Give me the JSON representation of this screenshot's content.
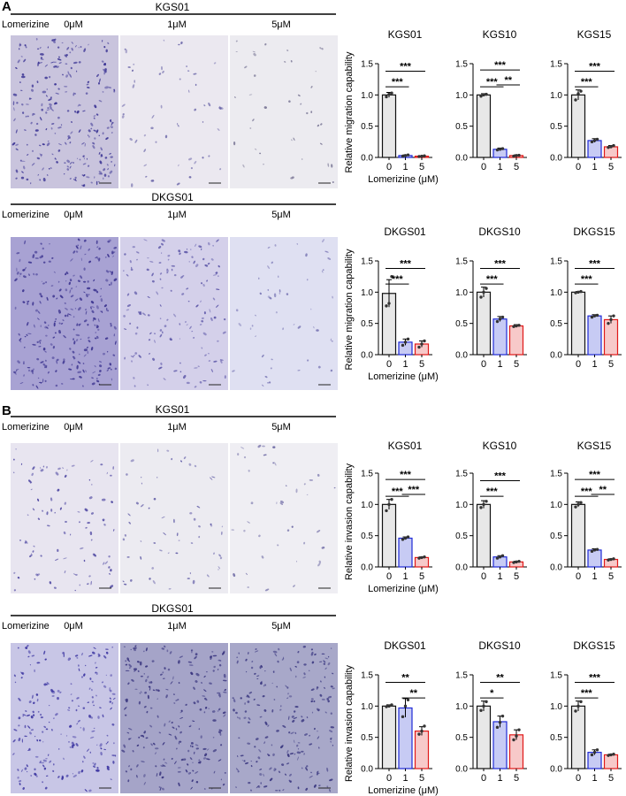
{
  "panels": [
    {
      "letter": "A",
      "rows": [
        {
          "cell_line": "KGS01",
          "treatment_label": "Lomerizine",
          "doses": [
            "0μM",
            "1μM",
            "5μM"
          ],
          "micrographs": [
            {
              "tint": "#c9c4dd",
              "density": 260,
              "cell": "#3b3494"
            },
            {
              "tint": "#ebe8f0",
              "density": 55,
              "cell": "#6a65a8"
            },
            {
              "tint": "#ecebf0",
              "density": 40,
              "cell": "#7d7a98"
            }
          ]
        },
        {
          "cell_line": "DKGS01",
          "treatment_label": "Lomerizine",
          "doses": [
            "0μM",
            "1μM",
            "5μM"
          ],
          "micrographs": [
            {
              "tint": "#a8a2d3",
              "density": 280,
              "cell": "#3d3590"
            },
            {
              "tint": "#d4d0ea",
              "density": 150,
              "cell": "#5d57a8"
            },
            {
              "tint": "#dfe0f2",
              "density": 50,
              "cell": "#7c79b6"
            }
          ]
        }
      ]
    },
    {
      "letter": "B",
      "rows": [
        {
          "cell_line": "KGS01",
          "treatment_label": "Lomerizine",
          "doses": [
            "0μM",
            "1μM",
            "5μM"
          ],
          "micrographs": [
            {
              "tint": "#e8e5f0",
              "density": 95,
              "cell": "#4b44a0"
            },
            {
              "tint": "#ecebf1",
              "density": 60,
              "cell": "#5d58a4"
            },
            {
              "tint": "#efeef3",
              "density": 40,
              "cell": "#6f6ba5"
            }
          ]
        },
        {
          "cell_line": "DKGS01",
          "treatment_label": "Lomerizine",
          "doses": [
            "0μM",
            "1μM",
            "5μM"
          ],
          "micrographs": [
            {
              "tint": "#c8c6e6",
              "density": 210,
              "cell": "#3a33a0"
            },
            {
              "tint": "#a5a4c8",
              "density": 230,
              "cell": "#38347e"
            },
            {
              "tint": "#a8a8c9",
              "density": 210,
              "cell": "#3a3780"
            }
          ]
        }
      ]
    }
  ],
  "chart_data": [
    {
      "type": "bar",
      "title": "KGS01",
      "xlabel": "Lomerizine (μM)",
      "ylabel": "Relative migration capability",
      "categories": [
        "0",
        "1",
        "5"
      ],
      "values": [
        1.0,
        0.03,
        0.02
      ],
      "errors": [
        0.04,
        0.01,
        0.005
      ],
      "points": [
        [
          0.97,
          1.01,
          1.03
        ],
        [
          0.02,
          0.03,
          0.04
        ],
        [
          0.015,
          0.02,
          0.025
        ]
      ],
      "ylim": [
        0,
        1.5
      ],
      "yticks": [
        "0.0",
        "0.5",
        "1.0",
        "1.5"
      ],
      "significance": [
        {
          "from": 0,
          "to": 1,
          "label": "***"
        },
        {
          "from": 0,
          "to": 2,
          "label": "***"
        }
      ]
    },
    {
      "type": "bar",
      "title": "KGS10",
      "xlabel": "",
      "ylabel": "",
      "categories": [
        "0",
        "1",
        "5"
      ],
      "values": [
        1.0,
        0.13,
        0.03
      ],
      "errors": [
        0.02,
        0.02,
        0.01
      ],
      "points": [
        [
          0.98,
          1.0,
          1.01
        ],
        [
          0.12,
          0.13,
          0.14
        ],
        [
          0.02,
          0.03,
          0.035
        ]
      ],
      "ylim": [
        0,
        1.5
      ],
      "yticks": [
        "0.0",
        "0.5",
        "1.0",
        "1.5"
      ],
      "significance": [
        {
          "from": 0,
          "to": 1,
          "label": "***"
        },
        {
          "from": 1,
          "to": 2,
          "label": "**"
        },
        {
          "from": 0,
          "to": 2,
          "label": "***"
        }
      ]
    },
    {
      "type": "bar",
      "title": "KGS15",
      "xlabel": "",
      "ylabel": "",
      "categories": [
        "0",
        "1",
        "5"
      ],
      "values": [
        1.0,
        0.27,
        0.17
      ],
      "errors": [
        0.08,
        0.03,
        0.02
      ],
      "points": [
        [
          0.92,
          1.02,
          1.06
        ],
        [
          0.25,
          0.27,
          0.29
        ],
        [
          0.16,
          0.17,
          0.19
        ]
      ],
      "ylim": [
        0,
        1.5
      ],
      "yticks": [
        "0.0",
        "0.5",
        "1.0",
        "1.5"
      ],
      "significance": [
        {
          "from": 0,
          "to": 1,
          "label": "***"
        },
        {
          "from": 0,
          "to": 2,
          "label": "***"
        }
      ]
    },
    {
      "type": "bar",
      "title": "DKGS01",
      "xlabel": "Lomerizine (μM)",
      "ylabel": "Relative migration capability",
      "categories": [
        "0",
        "1",
        "5"
      ],
      "values": [
        0.98,
        0.2,
        0.17
      ],
      "errors": [
        0.22,
        0.05,
        0.05
      ],
      "points": [
        [
          0.78,
          0.82,
          1.25
        ],
        [
          0.15,
          0.2,
          0.25
        ],
        [
          0.12,
          0.17,
          0.22
        ]
      ],
      "ylim": [
        0,
        1.5
      ],
      "yticks": [
        "0.0",
        "0.5",
        "1.0",
        "1.5"
      ],
      "significance": [
        {
          "from": 0,
          "to": 1,
          "label": "***"
        },
        {
          "from": 0,
          "to": 2,
          "label": "***"
        }
      ]
    },
    {
      "type": "bar",
      "title": "DKGS10",
      "xlabel": "",
      "ylabel": "",
      "categories": [
        "0",
        "1",
        "5"
      ],
      "values": [
        1.0,
        0.57,
        0.46
      ],
      "errors": [
        0.08,
        0.04,
        0.02
      ],
      "points": [
        [
          0.92,
          1.0,
          1.06
        ],
        [
          0.53,
          0.57,
          0.6
        ],
        [
          0.45,
          0.46,
          0.47
        ]
      ],
      "ylim": [
        0,
        1.5
      ],
      "yticks": [
        "0.0",
        "0.5",
        "1.0",
        "1.5"
      ],
      "significance": [
        {
          "from": 0,
          "to": 1,
          "label": "***"
        },
        {
          "from": 0,
          "to": 2,
          "label": "***"
        }
      ]
    },
    {
      "type": "bar",
      "title": "DKGS15",
      "xlabel": "",
      "ylabel": "",
      "categories": [
        "0",
        "1",
        "5"
      ],
      "values": [
        1.0,
        0.62,
        0.56
      ],
      "errors": [
        0.01,
        0.02,
        0.06
      ],
      "points": [
        [
          0.99,
          1.0,
          1.01
        ],
        [
          0.6,
          0.62,
          0.63
        ],
        [
          0.5,
          0.56,
          0.62
        ]
      ],
      "ylim": [
        0,
        1.5
      ],
      "yticks": [
        "0.0",
        "0.5",
        "1.0",
        "1.5"
      ],
      "significance": [
        {
          "from": 0,
          "to": 1,
          "label": "***"
        },
        {
          "from": 0,
          "to": 2,
          "label": "***"
        }
      ]
    },
    {
      "type": "bar",
      "title": "KGS01",
      "xlabel": "Lomerizine (μM)",
      "ylabel": "Relative invasion capability",
      "categories": [
        "0",
        "1",
        "5"
      ],
      "values": [
        1.0,
        0.46,
        0.15
      ],
      "errors": [
        0.08,
        0.02,
        0.01
      ],
      "points": [
        [
          0.9,
          1.0,
          1.08
        ],
        [
          0.44,
          0.46,
          0.48
        ],
        [
          0.14,
          0.15,
          0.16
        ]
      ],
      "ylim": [
        0,
        1.5
      ],
      "yticks": [
        "0.0",
        "0.5",
        "1.0",
        "1.5"
      ],
      "significance": [
        {
          "from": 0,
          "to": 1,
          "label": "***"
        },
        {
          "from": 1,
          "to": 2,
          "label": "***"
        },
        {
          "from": 0,
          "to": 2,
          "label": "***"
        }
      ]
    },
    {
      "type": "bar",
      "title": "KGS10",
      "xlabel": "",
      "ylabel": "",
      "categories": [
        "0",
        "1",
        "5"
      ],
      "values": [
        1.0,
        0.16,
        0.08
      ],
      "errors": [
        0.06,
        0.02,
        0.01
      ],
      "points": [
        [
          0.95,
          1.0,
          1.05
        ],
        [
          0.14,
          0.16,
          0.18
        ],
        [
          0.07,
          0.08,
          0.09
        ]
      ],
      "ylim": [
        0,
        1.5
      ],
      "yticks": [
        "0.0",
        "0.5",
        "1.0",
        "1.5"
      ],
      "significance": [
        {
          "from": 0,
          "to": 1,
          "label": "***"
        },
        {
          "from": 0,
          "to": 2,
          "label": "***"
        }
      ]
    },
    {
      "type": "bar",
      "title": "KGS15",
      "xlabel": "",
      "ylabel": "",
      "categories": [
        "0",
        "1",
        "5"
      ],
      "values": [
        1.0,
        0.27,
        0.12
      ],
      "errors": [
        0.04,
        0.02,
        0.01
      ],
      "points": [
        [
          0.96,
          1.0,
          1.03
        ],
        [
          0.25,
          0.27,
          0.28
        ],
        [
          0.11,
          0.12,
          0.13
        ]
      ],
      "ylim": [
        0,
        1.5
      ],
      "yticks": [
        "0.0",
        "0.5",
        "1.0",
        "1.5"
      ],
      "significance": [
        {
          "from": 0,
          "to": 1,
          "label": "***"
        },
        {
          "from": 1,
          "to": 2,
          "label": "**"
        },
        {
          "from": 0,
          "to": 2,
          "label": "***"
        }
      ]
    },
    {
      "type": "bar",
      "title": "DKGS01",
      "xlabel": "Lomerizine (μM)",
      "ylabel": "Relative invasion capability",
      "categories": [
        "0",
        "1",
        "5"
      ],
      "values": [
        1.0,
        0.97,
        0.6
      ],
      "errors": [
        0.02,
        0.15,
        0.07
      ],
      "points": [
        [
          0.99,
          1.0,
          1.02
        ],
        [
          0.83,
          1.0,
          1.1
        ],
        [
          0.55,
          0.6,
          0.68
        ]
      ],
      "ylim": [
        0,
        1.5
      ],
      "yticks": [
        "0.0",
        "0.5",
        "1.0",
        "1.5"
      ],
      "significance": [
        {
          "from": 1,
          "to": 2,
          "label": "**"
        },
        {
          "from": 0,
          "to": 2,
          "label": "**"
        }
      ]
    },
    {
      "type": "bar",
      "title": "DKGS10",
      "xlabel": "",
      "ylabel": "",
      "categories": [
        "0",
        "1",
        "5"
      ],
      "values": [
        1.0,
        0.75,
        0.54
      ],
      "errors": [
        0.08,
        0.09,
        0.08
      ],
      "points": [
        [
          0.93,
          1.0,
          1.07
        ],
        [
          0.66,
          0.74,
          0.84
        ],
        [
          0.46,
          0.52,
          0.62
        ]
      ],
      "ylim": [
        0,
        1.5
      ],
      "yticks": [
        "0.0",
        "0.5",
        "1.0",
        "1.5"
      ],
      "significance": [
        {
          "from": 0,
          "to": 1,
          "label": "*"
        },
        {
          "from": 0,
          "to": 2,
          "label": "**"
        }
      ]
    },
    {
      "type": "bar",
      "title": "DKGS15",
      "xlabel": "",
      "ylabel": "",
      "categories": [
        "0",
        "1",
        "5"
      ],
      "values": [
        1.0,
        0.26,
        0.22
      ],
      "errors": [
        0.08,
        0.04,
        0.01
      ],
      "points": [
        [
          0.92,
          1.0,
          1.07
        ],
        [
          0.22,
          0.26,
          0.3
        ],
        [
          0.21,
          0.22,
          0.23
        ]
      ],
      "ylim": [
        0,
        1.5
      ],
      "yticks": [
        "0.0",
        "0.5",
        "1.0",
        "1.5"
      ],
      "significance": [
        {
          "from": 0,
          "to": 1,
          "label": "***"
        },
        {
          "from": 0,
          "to": 2,
          "label": "***"
        }
      ]
    }
  ],
  "colors": {
    "bar_0": "#e8e8e8",
    "bar_1": "#c7cbf4",
    "bar_5": "#f7c9c9",
    "edge_0": "#111111",
    "edge_1": "#1f2ad6",
    "edge_5": "#e01818"
  }
}
